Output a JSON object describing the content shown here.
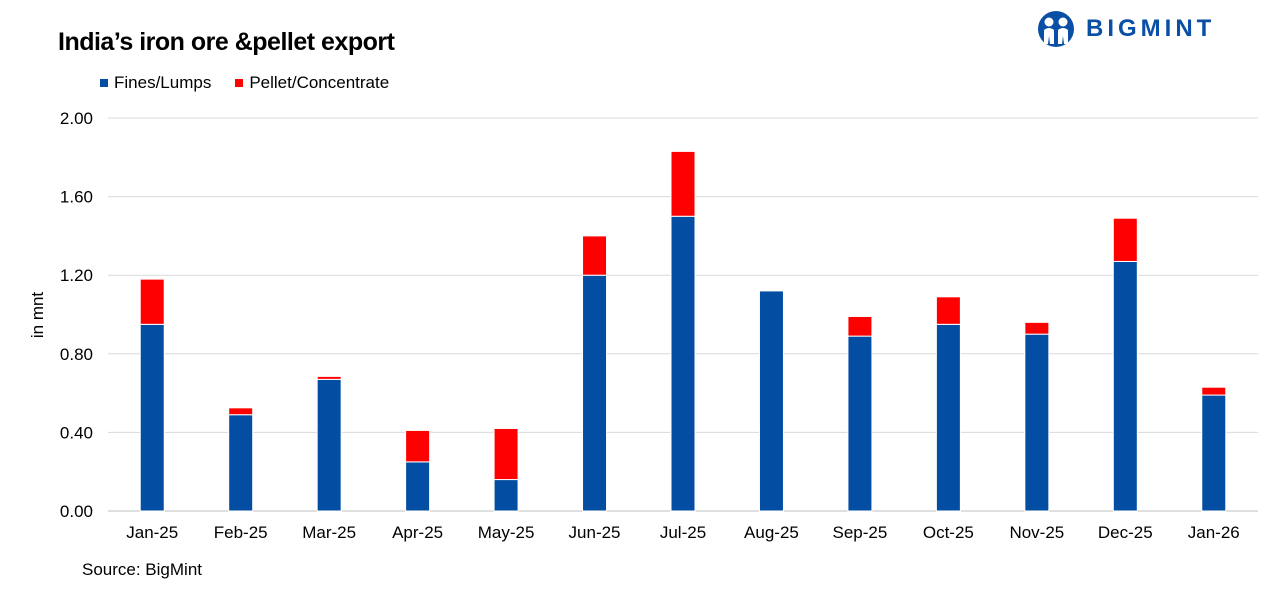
{
  "title": "India’s iron ore &pellet export",
  "source": "Source: BigMint",
  "logo": {
    "text": "BIGMINT",
    "icon": "bigmint-people-logo-icon"
  },
  "chart_data": {
    "type": "bar",
    "stacked": true,
    "title": "India’s iron ore &pellet export",
    "xlabel": "",
    "ylabel": "in mnt",
    "ylim": [
      0,
      2.0
    ],
    "yticks": [
      "0.00",
      "0.40",
      "0.80",
      "1.20",
      "1.60",
      "2.00"
    ],
    "grid": true,
    "legend_position": "top-left",
    "categories": [
      "Jan-25",
      "Feb-25",
      "Mar-25",
      "Apr-25",
      "May-25",
      "Jun-25",
      "Jul-25",
      "Aug-25",
      "Sep-25",
      "Oct-25",
      "Nov-25",
      "Dec-25",
      "Jan-26"
    ],
    "series": [
      {
        "name": "Fines/Lumps",
        "color": "#034ea2",
        "values": [
          0.95,
          0.49,
          0.67,
          0.25,
          0.16,
          1.2,
          1.5,
          1.12,
          0.89,
          0.95,
          0.9,
          1.27,
          0.59
        ]
      },
      {
        "name": "Pellet/Concentrate",
        "color": "#ff0000",
        "values": [
          0.23,
          0.035,
          0.015,
          0.16,
          0.26,
          0.2,
          0.33,
          0,
          0.1,
          0.14,
          0.06,
          0.22,
          0.04
        ]
      }
    ]
  }
}
